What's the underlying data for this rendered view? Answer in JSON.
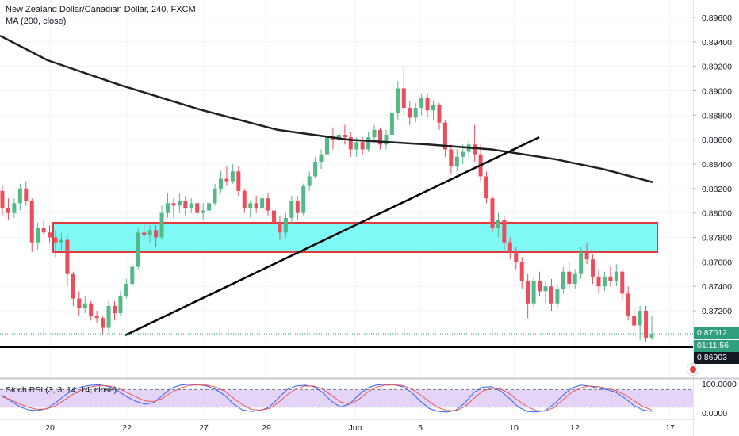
{
  "header": {
    "title": "New Zealand Dollar/Canadian Dollar, 240, FXCM",
    "indicator": "MA (200, close)"
  },
  "price_axis": {
    "labels": [
      "0.89600",
      "0.89400",
      "0.89200",
      "0.89000",
      "0.88800",
      "0.88600",
      "0.88400",
      "0.88200",
      "0.88000",
      "0.87800",
      "0.87600",
      "0.87400",
      "0.87200"
    ],
    "current_price": "0.87012",
    "countdown": "01:11:56",
    "line_price": "0.86903"
  },
  "time_axis": {
    "labels": [
      "20",
      "22",
      "27",
      "29",
      "Jun",
      "5",
      "10",
      "12",
      "17"
    ]
  },
  "oscillator": {
    "title": "Stoch RSI (3, 3, 14, 14, close)",
    "labels": [
      "100.0000",
      "0.0000"
    ]
  },
  "colors": {
    "up": "#53b987",
    "down": "#eb4d5c",
    "zone_fill": "#7ff9f5",
    "zone_border": "#e0393e",
    "ma": "#202020",
    "tag_green": "#2e9e7d",
    "tag_black": "#131722",
    "stoch_k": "#2962ff",
    "stoch_d": "#ef5350",
    "stoch_band": "#d8c2f5"
  },
  "chart_data": {
    "type": "candlestick",
    "symbol": "NZDCAD",
    "timeframe": "240",
    "ylim": [
      0.869,
      0.8965
    ],
    "candles": [
      [
        0.8818,
        0.8822,
        0.8798,
        0.8804
      ],
      [
        0.8804,
        0.8812,
        0.8794,
        0.88
      ],
      [
        0.88,
        0.8812,
        0.8796,
        0.8808
      ],
      [
        0.8808,
        0.8824,
        0.8802,
        0.882
      ],
      [
        0.882,
        0.8826,
        0.8806,
        0.881
      ],
      [
        0.881,
        0.8812,
        0.8768,
        0.8776
      ],
      [
        0.8776,
        0.8792,
        0.877,
        0.8788
      ],
      [
        0.8788,
        0.8794,
        0.8782,
        0.8784
      ],
      [
        0.8784,
        0.879,
        0.8776,
        0.878
      ],
      [
        0.878,
        0.8786,
        0.8764,
        0.8776
      ],
      [
        0.8776,
        0.8784,
        0.877,
        0.8778
      ],
      [
        0.8778,
        0.8782,
        0.874,
        0.875
      ],
      [
        0.875,
        0.8752,
        0.8724,
        0.873
      ],
      [
        0.873,
        0.8736,
        0.8716,
        0.8722
      ],
      [
        0.8722,
        0.8732,
        0.8718,
        0.8726
      ],
      [
        0.8726,
        0.8728,
        0.8712,
        0.8716
      ],
      [
        0.8716,
        0.872,
        0.871,
        0.8714
      ],
      [
        0.8714,
        0.8716,
        0.87,
        0.8706
      ],
      [
        0.8706,
        0.8728,
        0.8702,
        0.8724
      ],
      [
        0.8724,
        0.8728,
        0.8712,
        0.8718
      ],
      [
        0.8718,
        0.8736,
        0.8716,
        0.8732
      ],
      [
        0.8732,
        0.8746,
        0.873,
        0.8742
      ],
      [
        0.8742,
        0.8758,
        0.874,
        0.8756
      ],
      [
        0.8756,
        0.8788,
        0.8754,
        0.8784
      ],
      [
        0.8784,
        0.8792,
        0.8778,
        0.8782
      ],
      [
        0.8782,
        0.879,
        0.8776,
        0.8786
      ],
      [
        0.8786,
        0.879,
        0.8772,
        0.878
      ],
      [
        0.878,
        0.8806,
        0.8778,
        0.88
      ],
      [
        0.88,
        0.8816,
        0.8796,
        0.8808
      ],
      [
        0.8808,
        0.8812,
        0.8796,
        0.8806
      ],
      [
        0.8806,
        0.8816,
        0.88,
        0.881
      ],
      [
        0.881,
        0.8814,
        0.8798,
        0.8804
      ],
      [
        0.8804,
        0.8812,
        0.88,
        0.8808
      ],
      [
        0.8808,
        0.881,
        0.8796,
        0.88
      ],
      [
        0.88,
        0.8808,
        0.8794,
        0.8802
      ],
      [
        0.8802,
        0.8812,
        0.8798,
        0.8808
      ],
      [
        0.8808,
        0.8824,
        0.8806,
        0.882
      ],
      [
        0.882,
        0.8834,
        0.8816,
        0.8828
      ],
      [
        0.8828,
        0.8838,
        0.8822,
        0.8826
      ],
      [
        0.8826,
        0.884,
        0.8824,
        0.8834
      ],
      [
        0.8834,
        0.8838,
        0.8814,
        0.8818
      ],
      [
        0.8818,
        0.882,
        0.88,
        0.8804
      ],
      [
        0.8804,
        0.881,
        0.8796,
        0.8808
      ],
      [
        0.8808,
        0.8814,
        0.88,
        0.8804
      ],
      [
        0.8804,
        0.8816,
        0.88,
        0.8812
      ],
      [
        0.8812,
        0.8816,
        0.8798,
        0.8802
      ],
      [
        0.8802,
        0.8806,
        0.8786,
        0.8792
      ],
      [
        0.8792,
        0.8798,
        0.8778,
        0.8784
      ],
      [
        0.8784,
        0.88,
        0.878,
        0.8796
      ],
      [
        0.8796,
        0.8814,
        0.8792,
        0.881
      ],
      [
        0.881,
        0.8814,
        0.8794,
        0.88
      ],
      [
        0.88,
        0.8824,
        0.8798,
        0.8822
      ],
      [
        0.8822,
        0.8834,
        0.8818,
        0.883
      ],
      [
        0.883,
        0.8846,
        0.8828,
        0.8842
      ],
      [
        0.8842,
        0.8852,
        0.8836,
        0.8848
      ],
      [
        0.8848,
        0.8866,
        0.8846,
        0.8862
      ],
      [
        0.8862,
        0.887,
        0.8852,
        0.886
      ],
      [
        0.886,
        0.8868,
        0.885,
        0.8864
      ],
      [
        0.8864,
        0.8872,
        0.8856,
        0.8862
      ],
      [
        0.8862,
        0.8866,
        0.8846,
        0.8852
      ],
      [
        0.8852,
        0.8862,
        0.8846,
        0.8858
      ],
      [
        0.8858,
        0.8862,
        0.8848,
        0.8852
      ],
      [
        0.8852,
        0.8866,
        0.885,
        0.8862
      ],
      [
        0.8862,
        0.8872,
        0.8858,
        0.8868
      ],
      [
        0.8868,
        0.887,
        0.8852,
        0.8856
      ],
      [
        0.8856,
        0.8868,
        0.8852,
        0.8864
      ],
      [
        0.8864,
        0.889,
        0.886,
        0.8882
      ],
      [
        0.8882,
        0.8908,
        0.8876,
        0.8902
      ],
      [
        0.8902,
        0.892,
        0.888,
        0.8886
      ],
      [
        0.8886,
        0.8892,
        0.8872,
        0.8878
      ],
      [
        0.8878,
        0.889,
        0.8874,
        0.8886
      ],
      [
        0.8886,
        0.8898,
        0.888,
        0.8894
      ],
      [
        0.8894,
        0.8898,
        0.8878,
        0.8884
      ],
      [
        0.8884,
        0.8892,
        0.8876,
        0.8888
      ],
      [
        0.8888,
        0.889,
        0.8868,
        0.8874
      ],
      [
        0.8874,
        0.8876,
        0.8846,
        0.8852
      ],
      [
        0.8852,
        0.8856,
        0.8832,
        0.8838
      ],
      [
        0.8838,
        0.8852,
        0.8834,
        0.8846
      ],
      [
        0.8846,
        0.8856,
        0.884,
        0.885
      ],
      [
        0.885,
        0.886,
        0.8846,
        0.8856
      ],
      [
        0.8856,
        0.8872,
        0.8842,
        0.8848
      ],
      [
        0.8848,
        0.8856,
        0.8826,
        0.883
      ],
      [
        0.883,
        0.8834,
        0.8808,
        0.8812
      ],
      [
        0.8812,
        0.8814,
        0.8784,
        0.8788
      ],
      [
        0.8788,
        0.88,
        0.878,
        0.8794
      ],
      [
        0.8794,
        0.8798,
        0.877,
        0.8776
      ],
      [
        0.8776,
        0.878,
        0.8762,
        0.8768
      ],
      [
        0.8768,
        0.8772,
        0.8754,
        0.876
      ],
      [
        0.876,
        0.8764,
        0.8738,
        0.8744
      ],
      [
        0.8744,
        0.875,
        0.8714,
        0.8726
      ],
      [
        0.8726,
        0.8748,
        0.8722,
        0.8744
      ],
      [
        0.8744,
        0.8752,
        0.8732,
        0.8736
      ],
      [
        0.8736,
        0.8744,
        0.8726,
        0.874
      ],
      [
        0.874,
        0.8746,
        0.872,
        0.8726
      ],
      [
        0.8726,
        0.8742,
        0.8722,
        0.8738
      ],
      [
        0.8738,
        0.8756,
        0.8734,
        0.8752
      ],
      [
        0.8752,
        0.876,
        0.8738,
        0.8742
      ],
      [
        0.8742,
        0.8754,
        0.8738,
        0.875
      ],
      [
        0.875,
        0.8772,
        0.8746,
        0.8768
      ],
      [
        0.8768,
        0.8776,
        0.8758,
        0.8762
      ],
      [
        0.8762,
        0.8766,
        0.8742,
        0.8748
      ],
      [
        0.8748,
        0.8754,
        0.8734,
        0.874
      ],
      [
        0.874,
        0.8752,
        0.8736,
        0.8748
      ],
      [
        0.8748,
        0.8756,
        0.874,
        0.8744
      ],
      [
        0.8744,
        0.8758,
        0.874,
        0.8752
      ],
      [
        0.8752,
        0.8754,
        0.8728,
        0.8734
      ],
      [
        0.8734,
        0.874,
        0.8712,
        0.8716
      ],
      [
        0.8716,
        0.8722,
        0.8702,
        0.8708
      ],
      [
        0.8708,
        0.8724,
        0.8696,
        0.872
      ],
      [
        0.872,
        0.8724,
        0.8694,
        0.8698
      ],
      [
        0.8698,
        0.8716,
        0.8696,
        0.8701
      ]
    ],
    "ma200": [
      [
        0,
        0.8945
      ],
      [
        60,
        0.8925
      ],
      [
        150,
        0.8905
      ],
      [
        250,
        0.8885
      ],
      [
        350,
        0.8868
      ],
      [
        440,
        0.886
      ],
      [
        540,
        0.8856
      ],
      [
        620,
        0.8852
      ],
      [
        700,
        0.8844
      ],
      [
        760,
        0.8836
      ],
      [
        824,
        0.8825
      ]
    ],
    "zone": {
      "low": 0.8768,
      "high": 0.8792
    },
    "trendline": {
      "from": [
        0.87,
        "22"
      ],
      "to": [
        0.8862,
        "10"
      ]
    },
    "support_line": 0.86903,
    "stoch_rsi": {
      "k": [
        60,
        40,
        20,
        10,
        8,
        15,
        35,
        60,
        80,
        90,
        95,
        96,
        90,
        75,
        55,
        40,
        30,
        35,
        60,
        85,
        95,
        98,
        97,
        92,
        80,
        60,
        30,
        10,
        5,
        8,
        20,
        50,
        80,
        92,
        95,
        90,
        70,
        40,
        20,
        30,
        60,
        85,
        95,
        98,
        96,
        90,
        70,
        40,
        15,
        5,
        3,
        10,
        35,
        70,
        88,
        90,
        75,
        50,
        20,
        5,
        3,
        8,
        30,
        60,
        85,
        95,
        92,
        85,
        80,
        70,
        50,
        25,
        10,
        5
      ],
      "d": [
        55,
        45,
        30,
        18,
        12,
        14,
        25,
        45,
        65,
        80,
        90,
        94,
        92,
        85,
        70,
        55,
        42,
        38,
        50,
        70,
        85,
        94,
        96,
        95,
        88,
        75,
        50,
        28,
        12,
        10,
        15,
        35,
        62,
        82,
        92,
        92,
        82,
        60,
        38,
        30,
        45,
        70,
        88,
        95,
        96,
        94,
        82,
        62,
        38,
        18,
        8,
        8,
        22,
        50,
        75,
        85,
        82,
        66,
        42,
        22,
        8,
        6,
        18,
        45,
        70,
        86,
        92,
        90,
        84,
        76,
        62,
        42,
        22,
        10
      ],
      "upper": 80,
      "lower": 20
    }
  }
}
